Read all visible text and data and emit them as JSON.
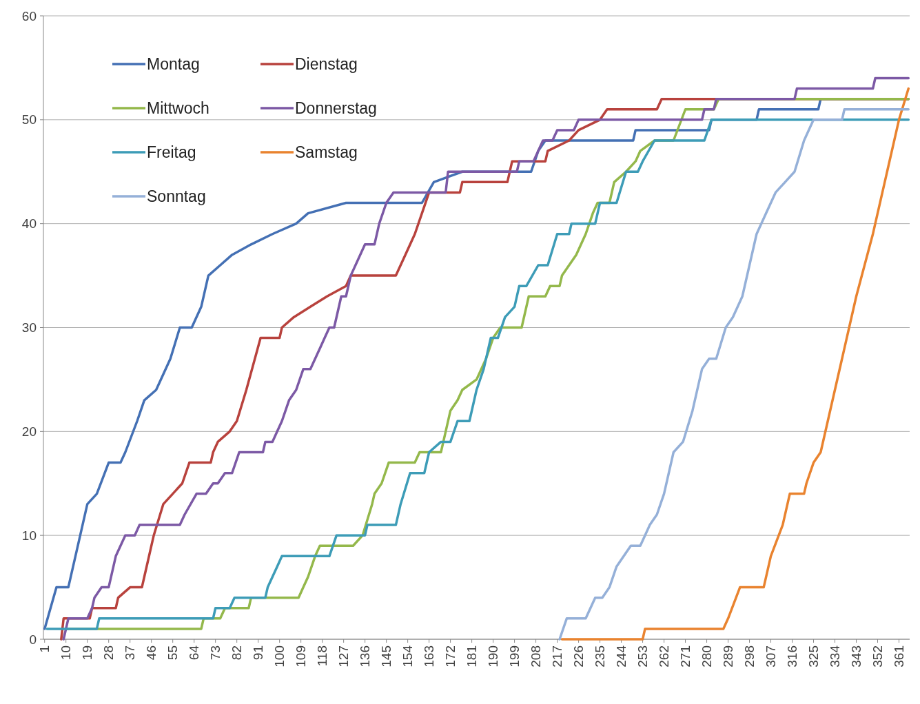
{
  "chart_data": {
    "type": "line",
    "xlim": [
      0.5,
      365.5
    ],
    "ylim": [
      0,
      60
    ],
    "yticks": [
      0,
      10,
      20,
      30,
      40,
      50,
      60
    ],
    "xticks": [
      1,
      10,
      19,
      28,
      37,
      46,
      55,
      64,
      73,
      82,
      91,
      100,
      109,
      118,
      127,
      136,
      145,
      154,
      163,
      172,
      181,
      190,
      199,
      208,
      217,
      226,
      235,
      244,
      253,
      262,
      271,
      280,
      289,
      298,
      307,
      316,
      325,
      334,
      343,
      352,
      361
    ],
    "grid": "y",
    "legend": "top left",
    "line_style": "solid",
    "marker": "none",
    "series": [
      {
        "name": "Montag",
        "color": "#4470b4",
        "x": [
          1,
          6,
          11,
          19,
          23,
          28,
          33,
          35,
          40,
          43,
          48,
          54,
          58,
          63,
          67,
          70,
          75,
          80,
          88,
          97,
          107,
          112,
          128,
          160,
          165,
          177,
          206,
          209,
          212,
          249,
          250,
          281,
          282,
          301,
          302,
          327,
          328,
          365
        ],
        "values": [
          1,
          5,
          5,
          13,
          14,
          17,
          17,
          18,
          21,
          23,
          24,
          27,
          30,
          30,
          32,
          35,
          36,
          37,
          38,
          39,
          40,
          41,
          42,
          42,
          44,
          45,
          45,
          47,
          48,
          48,
          49,
          49,
          50,
          50,
          51,
          51,
          52,
          52
        ]
      },
      {
        "name": "Dienstag",
        "color": "#b8423d",
        "x": [
          8,
          9,
          20,
          21,
          31,
          32,
          37,
          42,
          43,
          47,
          51,
          55,
          59,
          62,
          71,
          72,
          74,
          79,
          82,
          86,
          92,
          100,
          101,
          106,
          113,
          120,
          128,
          130,
          149,
          151,
          153,
          157,
          160,
          163,
          176,
          177,
          196,
          198,
          212,
          213,
          222,
          226,
          235,
          238,
          259,
          261,
          365
        ],
        "values": [
          0,
          2,
          2,
          3,
          3,
          4,
          5,
          5,
          6,
          10,
          13,
          14,
          15,
          17,
          17,
          18,
          19,
          20,
          21,
          24,
          29,
          29,
          30,
          31,
          32,
          33,
          34,
          35,
          35,
          36,
          37,
          39,
          41,
          43,
          43,
          44,
          44,
          46,
          46,
          47,
          48,
          49,
          50,
          51,
          51,
          52,
          52
        ]
      },
      {
        "name": "Mittwoch",
        "color": "#94b84b",
        "x": [
          10,
          67,
          68,
          75,
          77,
          87,
          88,
          108,
          110,
          112,
          115,
          117,
          131,
          135,
          139,
          140,
          143,
          146,
          157,
          159,
          168,
          170,
          172,
          175,
          177,
          183,
          187,
          190,
          193,
          202,
          205,
          212,
          214,
          218,
          219,
          225,
          229,
          232,
          234,
          239,
          241,
          246,
          250,
          252,
          258,
          266,
          271,
          283,
          285,
          365
        ],
        "values": [
          1,
          1,
          2,
          2,
          3,
          3,
          4,
          4,
          5,
          6,
          8,
          9,
          9,
          10,
          13,
          14,
          15,
          17,
          17,
          18,
          18,
          20,
          22,
          23,
          24,
          25,
          27,
          29,
          30,
          30,
          33,
          33,
          34,
          34,
          35,
          37,
          39,
          41,
          42,
          42,
          44,
          45,
          46,
          47,
          48,
          48,
          51,
          51,
          52,
          52
        ]
      },
      {
        "name": "Donnerstag",
        "color": "#7c59a5",
        "x": [
          9,
          11,
          19,
          21,
          22,
          25,
          28,
          31,
          35,
          39,
          41,
          58,
          60,
          65,
          69,
          72,
          74,
          77,
          80,
          83,
          93,
          94,
          97,
          99,
          101,
          104,
          107,
          110,
          113,
          117,
          119,
          121,
          123,
          126,
          128,
          130,
          136,
          140,
          142,
          145,
          148,
          170,
          171,
          200,
          201,
          207,
          209,
          211,
          215,
          217,
          224,
          226,
          278,
          279,
          283,
          284,
          317,
          318,
          350,
          351,
          365
        ],
        "values": [
          0,
          2,
          2,
          3,
          4,
          5,
          5,
          8,
          10,
          10,
          11,
          11,
          12,
          14,
          14,
          15,
          15,
          16,
          16,
          18,
          18,
          19,
          19,
          20,
          21,
          23,
          24,
          26,
          26,
          28,
          29,
          30,
          30,
          33,
          33,
          35,
          38,
          38,
          40,
          42,
          43,
          43,
          45,
          45,
          46,
          46,
          47,
          48,
          48,
          49,
          49,
          50,
          50,
          51,
          51,
          52,
          52,
          53,
          53,
          54,
          54
        ]
      },
      {
        "name": "Freitag",
        "color": "#3d9cb7",
        "x": [
          2,
          23,
          24,
          72,
          73,
          79,
          81,
          94,
          95,
          99,
          101,
          121,
          124,
          136,
          137,
          149,
          151,
          155,
          161,
          163,
          168,
          172,
          175,
          180,
          183,
          186,
          189,
          192,
          195,
          199,
          201,
          204,
          209,
          213,
          217,
          222,
          223,
          233,
          235,
          242,
          246,
          251,
          253,
          258,
          279,
          282,
          365
        ],
        "values": [
          1,
          1,
          2,
          2,
          3,
          3,
          4,
          4,
          5,
          7,
          8,
          8,
          10,
          10,
          11,
          11,
          13,
          16,
          16,
          18,
          19,
          19,
          21,
          21,
          24,
          26,
          29,
          29,
          31,
          32,
          34,
          34,
          36,
          36,
          39,
          39,
          40,
          40,
          42,
          42,
          45,
          45,
          46,
          48,
          48,
          50,
          50
        ]
      },
      {
        "name": "Samstag",
        "color": "#e9832f",
        "x": [
          219,
          253,
          254,
          287,
          289,
          294,
          304,
          307,
          312,
          315,
          321,
          322,
          325,
          328,
          331,
          337,
          343,
          350,
          356,
          361,
          365
        ],
        "values": [
          0,
          0,
          1,
          1,
          2,
          5,
          5,
          8,
          11,
          14,
          14,
          15,
          17,
          18,
          21,
          27,
          33,
          39,
          45,
          50,
          53
        ]
      },
      {
        "name": "Sonntag",
        "color": "#95b0d8",
        "x": [
          218,
          221,
          229,
          231,
          233,
          236,
          239,
          242,
          248,
          252,
          254,
          256,
          259,
          262,
          266,
          270,
          274,
          278,
          281,
          284,
          288,
          291,
          295,
          298,
          301,
          305,
          309,
          313,
          317,
          321,
          325,
          337,
          338,
          365
        ],
        "values": [
          0,
          2,
          2,
          3,
          4,
          4,
          5,
          7,
          9,
          9,
          10,
          11,
          12,
          14,
          18,
          19,
          22,
          26,
          27,
          27,
          30,
          31,
          33,
          36,
          39,
          41,
          43,
          44,
          45,
          48,
          50,
          50,
          51,
          51
        ]
      }
    ]
  }
}
